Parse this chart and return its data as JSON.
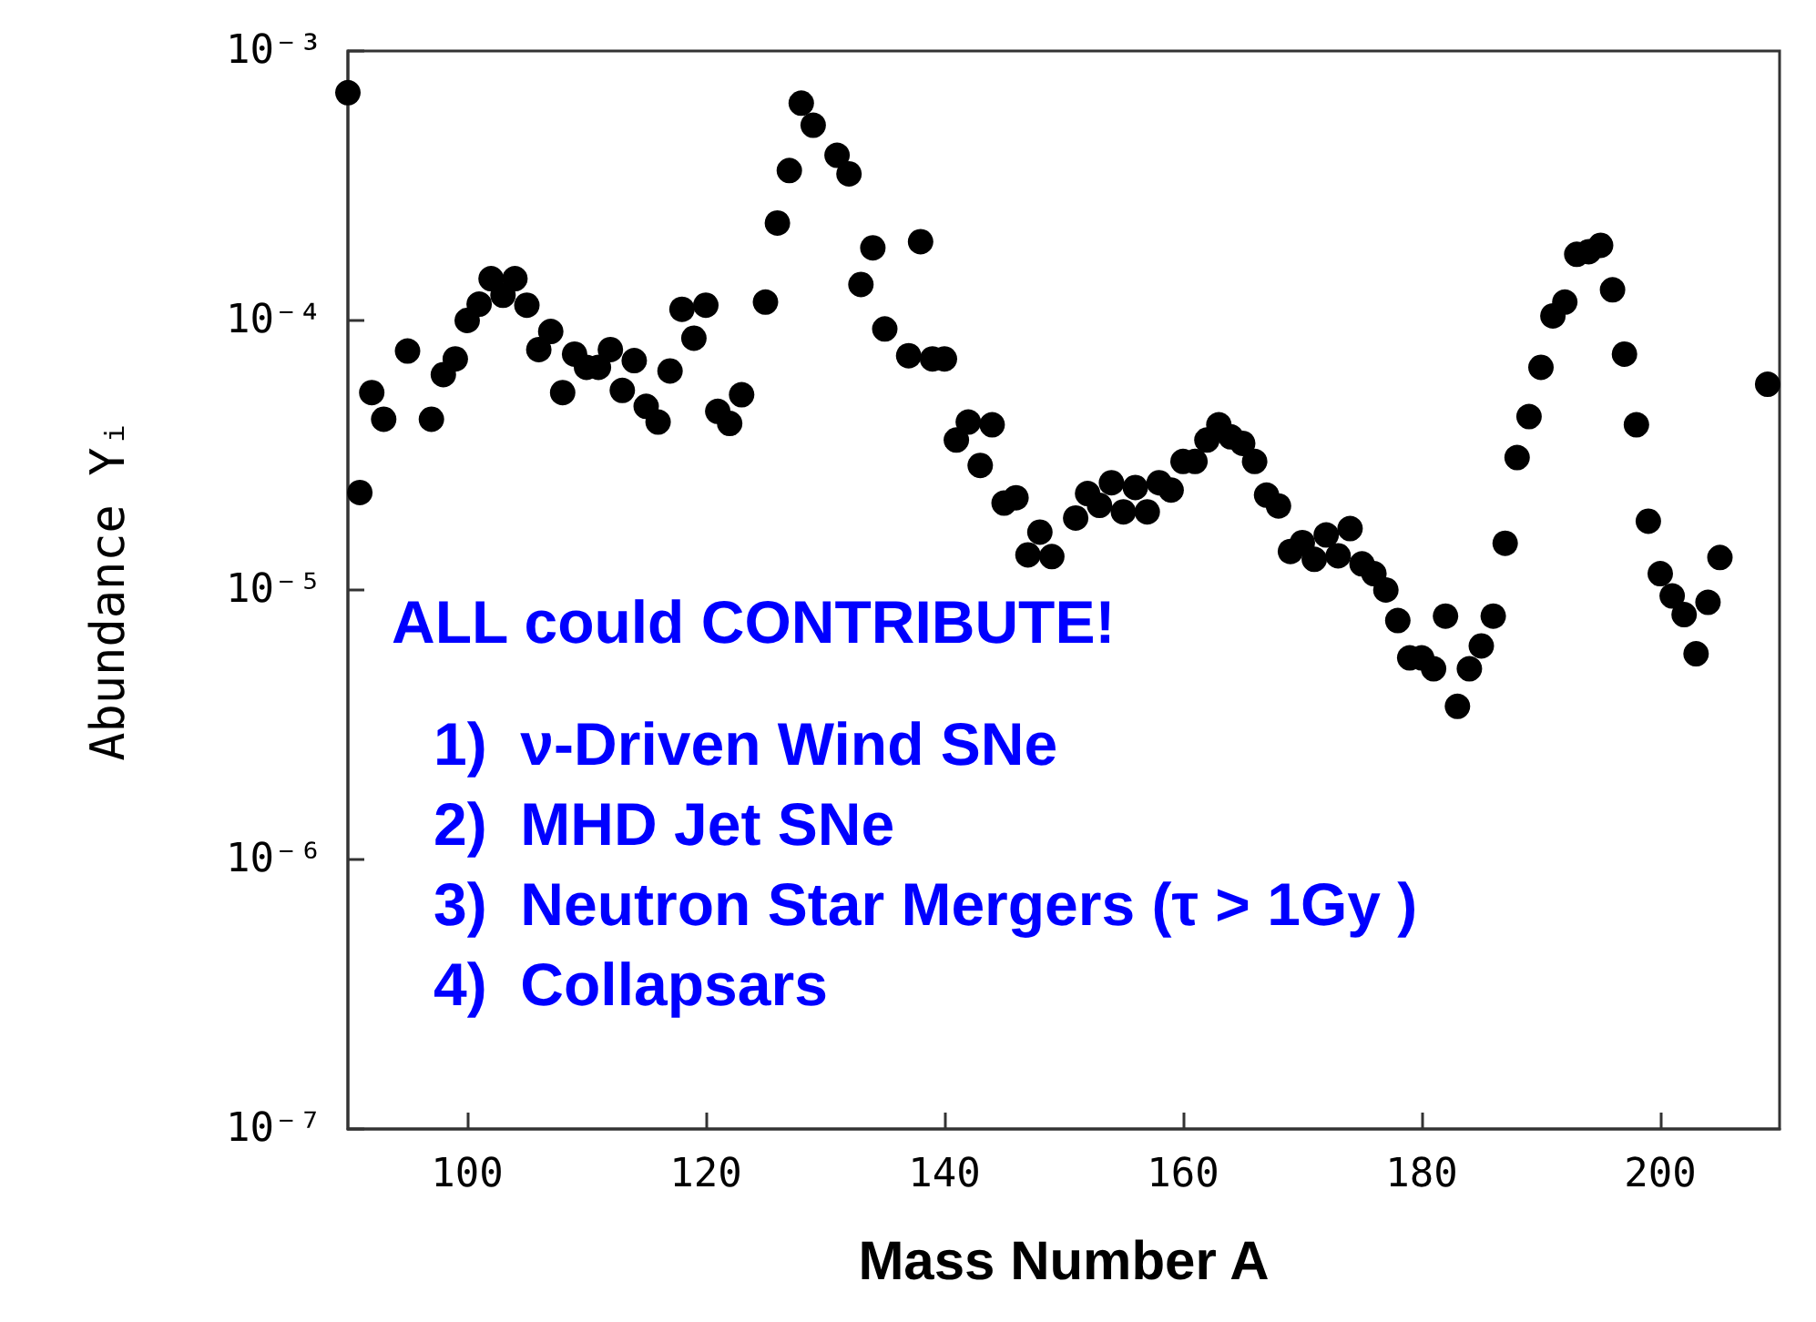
{
  "chart_data": {
    "type": "scatter",
    "xlabel": "Mass Number A",
    "ylabel": "Abundance Yᵢ",
    "x": [
      90,
      91,
      92,
      93,
      95,
      97,
      98,
      99,
      100,
      101,
      102,
      103,
      104,
      105,
      106,
      107,
      108,
      109,
      110,
      111,
      112,
      113,
      114,
      115,
      116,
      117,
      118,
      119,
      120,
      121,
      122,
      123,
      125,
      126,
      127,
      128,
      129,
      131,
      132,
      133,
      134,
      135,
      137,
      138,
      139,
      140,
      141,
      142,
      143,
      144,
      145,
      146,
      147,
      148,
      149,
      151,
      152,
      153,
      154,
      155,
      156,
      157,
      158,
      159,
      160,
      161,
      162,
      163,
      164,
      165,
      166,
      167,
      168,
      169,
      170,
      171,
      172,
      173,
      174,
      175,
      176,
      177,
      178,
      179,
      180,
      181,
      182,
      183,
      184,
      185,
      186,
      187,
      188,
      189,
      190,
      191,
      192,
      193,
      194,
      195,
      196,
      197,
      198,
      199,
      200,
      201,
      202,
      203,
      204,
      205,
      209
    ],
    "series": [
      {
        "color": "#000000",
        "values": [
          0.0007,
          2.3e-05,
          5.4e-05,
          4.3e-05,
          7.7e-05,
          4.3e-05,
          6.3e-05,
          7.2e-05,
          0.0001,
          0.000115,
          0.000143,
          0.000124,
          0.000143,
          0.000114,
          7.8e-05,
          9.1e-05,
          5.4e-05,
          7.5e-05,
          6.7e-05,
          6.7e-05,
          7.8e-05,
          5.5e-05,
          7.1e-05,
          4.8e-05,
          4.2e-05,
          6.5e-05,
          0.00011,
          8.6e-05,
          0.000114,
          4.6e-05,
          4.15e-05,
          5.3e-05,
          0.000117,
          0.00023,
          0.00036,
          0.00064,
          0.00053,
          0.00041,
          0.00035,
          0.000136,
          0.000186,
          9.3e-05,
          7.4e-05,
          0.000196,
          7.2e-05,
          7.2e-05,
          3.6e-05,
          4.2e-05,
          2.9e-05,
          4.1e-05,
          2.1e-05,
          2.2e-05,
          1.35e-05,
          1.64e-05,
          1.33e-05,
          1.85e-05,
          2.28e-05,
          2.06e-05,
          2.5e-05,
          1.95e-05,
          2.4e-05,
          1.95e-05,
          2.5e-05,
          2.35e-05,
          3e-05,
          3e-05,
          3.6e-05,
          4.1e-05,
          3.7e-05,
          3.5e-05,
          3e-05,
          2.25e-05,
          2.05e-05,
          1.39e-05,
          1.5e-05,
          1.3e-05,
          1.6e-05,
          1.34e-05,
          1.69e-05,
          1.25e-05,
          1.15e-05,
          1e-05,
          7.7e-06,
          5.6e-06,
          5.6e-06,
          5.1e-06,
          8e-06,
          3.7e-06,
          5.1e-06,
          6.2e-06,
          8e-06,
          1.49e-05,
          3.1e-05,
          4.4e-05,
          6.7e-05,
          0.000104,
          0.000117,
          0.000176,
          0.00018,
          0.00019,
          0.00013,
          7.5e-05,
          4.1e-05,
          1.8e-05,
          1.15e-05,
          9.5e-06,
          8.1e-06,
          5.8e-06,
          9e-06,
          1.32e-05,
          5.8e-05
        ]
      }
    ],
    "xlim": [
      90,
      210
    ],
    "xticks": [
      100,
      120,
      140,
      160,
      180,
      200
    ],
    "ylim": [
      1e-07,
      0.001
    ],
    "log": true,
    "yticks": [
      {
        "value": 1e-07,
        "label": "10⁻⁷"
      },
      {
        "value": 1e-06,
        "label": "10⁻⁶"
      },
      {
        "value": 1e-05,
        "label": "10⁻⁵"
      },
      {
        "value": 0.0001,
        "label": "10⁻⁴"
      },
      {
        "value": 0.001,
        "label": "10⁻³"
      }
    ],
    "marker": "circle",
    "grid": false,
    "annotations": [
      "ALL could CONTRIBUTE!",
      "1)  ν-Driven Wind SNe",
      "2)  MHD Jet SNe",
      "3)  Neutron Star Mergers (τ > 1Gy )",
      "4)  Collapsars"
    ]
  }
}
